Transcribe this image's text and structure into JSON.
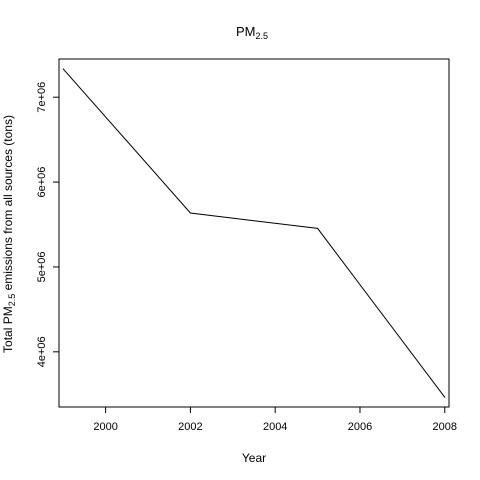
{
  "chart_data": {
    "type": "line",
    "title": "PM",
    "title_subscript": "2.5",
    "xlabel": "Year",
    "ylabel_prefix": "Total  PM",
    "ylabel_subscript": "2.5",
    "ylabel_suffix": " emissions from all sources (tons)",
    "x": [
      1999,
      2002,
      2005,
      2008
    ],
    "y": [
      7332967,
      5635780,
      5454703,
      3464206
    ],
    "xlim": [
      1998.9,
      2008.1
    ],
    "ylim": [
      3350000,
      7450000
    ],
    "xticks": [
      2000,
      2002,
      2004,
      2006,
      2008
    ],
    "xtick_labels": [
      "2000",
      "2002",
      "2004",
      "2006",
      "2008"
    ],
    "yticks": [
      4000000,
      5000000,
      6000000,
      7000000
    ],
    "ytick_labels": [
      "4e+06",
      "5e+06",
      "6e+06",
      "7e+06"
    ],
    "grid": false,
    "line_color": "#000000"
  }
}
